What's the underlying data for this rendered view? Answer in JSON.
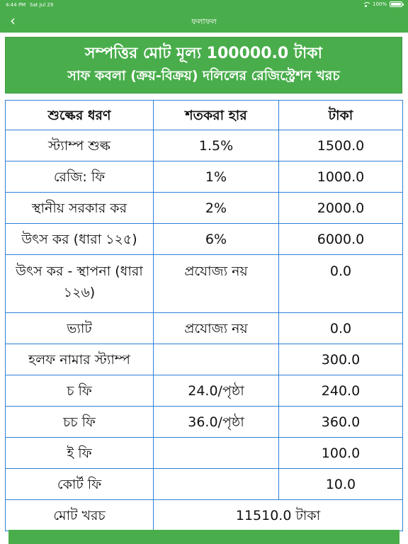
{
  "status_bar": {
    "time": "4:44 PM",
    "date": "Sat Jul 29",
    "battery": "100%"
  },
  "nav": {
    "title": "ফলাফল",
    "back_symbol": "‹"
  },
  "summary": {
    "line1": "সম্পত্তির মোট মূল্য 100000.0 টাকা",
    "line2": "সাফ কবলা (ক্রয়-বিক্রয়) দলিলের রেজিস্ট্রেশন খরচ"
  },
  "table": {
    "headers": [
      "শুল্কের ধরণ",
      "শতকরা হার",
      "টাকা"
    ],
    "rows": [
      {
        "type": "স্ট্যাম্প শুল্ক",
        "rate": "1.5%",
        "amount": "1500.0"
      },
      {
        "type": "রেজি: ফি",
        "rate": "1%",
        "amount": "1000.0"
      },
      {
        "type": "স্থানীয় সরকার কর",
        "rate": "2%",
        "amount": "2000.0"
      },
      {
        "type": "উৎস কর (ধারা ১২৫)",
        "rate": "6%",
        "amount": "6000.0"
      },
      {
        "type": "উৎস কর - স্থাপনা (ধারা ১২৬)",
        "rate": "প্রযোজ্য নয়",
        "amount": "0.0"
      },
      {
        "type": "ভ্যাট",
        "rate": "প্রযোজ্য নয়",
        "amount": "0.0"
      },
      {
        "type": "হলফ নামার স্ট্যাম্প",
        "rate": "",
        "amount": "300.0"
      },
      {
        "type": "চ ফি",
        "rate": "24.0/পৃষ্ঠা",
        "amount": "240.0"
      },
      {
        "type": "চচ ফি",
        "rate": "36.0/পৃষ্ঠা",
        "amount": "360.0"
      },
      {
        "type": "ই ফি",
        "rate": "",
        "amount": "100.0"
      },
      {
        "type": "কোর্ট ফি",
        "rate": "",
        "amount": "10.0"
      }
    ],
    "total_label": "মোট খরচ",
    "total_value": "11510.0 টাকা"
  },
  "bottom_button": {
    "label": ""
  },
  "colors": {
    "primary_green": "#49ad4b",
    "table_border": "#2f80d8"
  }
}
